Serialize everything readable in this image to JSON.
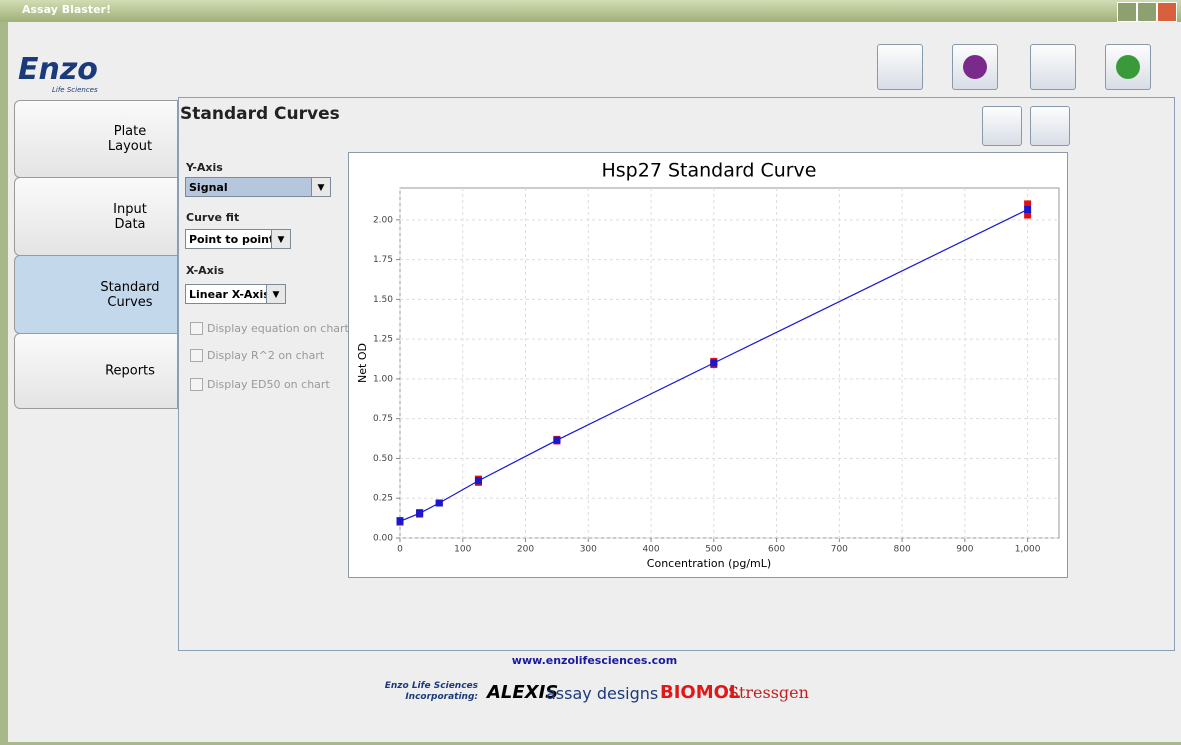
{
  "window_title": "Assay Blaster!",
  "logo": {
    "name": "Enzo",
    "sub": "Life Sciences"
  },
  "tabs": [
    "Plate\nLayout",
    "Input\nData",
    "Standard\nCurves",
    "Reports"
  ],
  "panel_title": "Standard Curves",
  "controls": {
    "y_axis_label": "Y-Axis",
    "y_axis_value": "Signal",
    "curve_fit_label": "Curve fit",
    "curve_fit_value": "Point to point",
    "x_axis_label": "X-Axis",
    "x_axis_value": "Linear X-Axis",
    "checkboxes": [
      "Display equation on chart",
      "Display R^2 on chart",
      "Display ED50  on chart"
    ]
  },
  "chart_data": {
    "type": "scatter",
    "title": "Hsp27 Standard Curve",
    "x_label": "Concentration (pg/mL)",
    "y_label": "Net OD",
    "xlim": [
      0,
      1050
    ],
    "ylim": [
      0,
      2.2
    ],
    "xticks": [
      0,
      100,
      200,
      300,
      400,
      500,
      600,
      700,
      800,
      900,
      {
        "value": 1000,
        "label": "1,000"
      }
    ],
    "yticks": [
      {
        "value": 0,
        "label": "0.00"
      },
      0.25,
      {
        "value": 0.5,
        "label": "0.50"
      },
      0.75,
      {
        "value": 1,
        "label": "1.00"
      },
      1.25,
      {
        "value": 1.5,
        "label": "1.50"
      },
      1.75,
      {
        "value": 2,
        "label": "2.00"
      }
    ],
    "grid": true,
    "series": [
      {
        "color": "#e01010",
        "marker": "square",
        "x": [
          0,
          31.25,
          62.5,
          125,
          250,
          500,
          1000
        ],
        "values": [
          0.1,
          0.15,
          0.22,
          0.37,
          0.62,
          1.11,
          2.1
        ]
      },
      {
        "color": "#e01010",
        "marker": "square",
        "x": [
          0,
          31.25,
          62.5,
          125,
          250,
          500,
          1000
        ],
        "values": [
          0.11,
          0.16,
          0.22,
          0.35,
          0.61,
          1.09,
          2.03
        ]
      },
      {
        "color": "#1818d0",
        "marker": "square",
        "line": true,
        "x": [
          0,
          31.25,
          62.5,
          125,
          250,
          500,
          1000
        ],
        "values": [
          0.105,
          0.155,
          0.22,
          0.36,
          0.615,
          1.1,
          2.065
        ]
      }
    ]
  },
  "footer": {
    "url": "www.enzolifesciences.com",
    "incorporating": "Enzo Life Sciences\nIncorporating:",
    "brands": [
      "ALEXIS",
      "assay designs",
      "BIOMOL",
      "Stressgen"
    ]
  }
}
